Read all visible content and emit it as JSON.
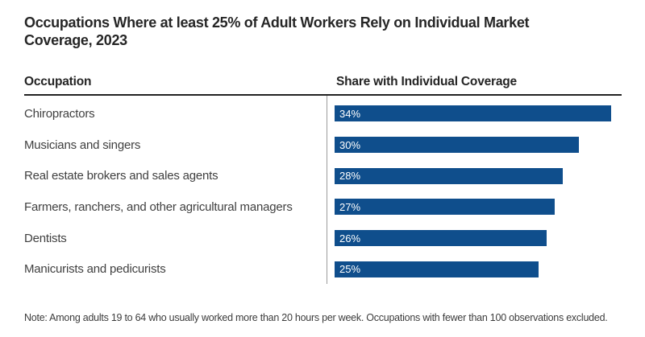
{
  "title": "Occupations Where at least 25% of Adult Workers Rely on Individual Market\nCoverage, 2023",
  "table": {
    "occupation_header": "Occupation",
    "share_header": "Share with Individual Coverage"
  },
  "chart_data": {
    "type": "bar",
    "orientation": "horizontal",
    "title": "Occupations Where at least 25% of Adult Workers Rely on Individual Market Coverage, 2023",
    "xlabel": "Share with Individual Coverage",
    "ylabel": "Occupation",
    "categories": [
      "Chiropractors",
      "Musicians and singers",
      "Real estate brokers and sales agents",
      "Farmers, ranchers, and other agricultural managers",
      "Dentists",
      "Manicurists and pedicurists"
    ],
    "values": [
      34,
      30,
      28,
      27,
      26,
      25
    ],
    "value_labels": [
      "34%",
      "30%",
      "28%",
      "27%",
      "26%",
      "25%"
    ],
    "xlim": [
      0,
      34
    ],
    "grid": false,
    "legend": "none",
    "bar_color": "#0F4E8C",
    "value_label_color": "#ffffff"
  },
  "note": "Note: Among adults 19 to 64 who usually worked more than 20 hours per week. Occupations with fewer than 100 observations excluded.",
  "colors": {
    "bar": "#0F4E8C",
    "title_text": "#262626",
    "row_text": "#404040",
    "divider_dark": "#222222",
    "divider_light": "#9b9b9b",
    "background": "#ffffff"
  }
}
